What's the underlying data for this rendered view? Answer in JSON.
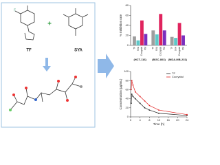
{
  "diagram": {
    "labels": [
      "TF",
      "SYA"
    ]
  },
  "chart_data": [
    {
      "type": "bar",
      "ylabel": "% Inhibition rate",
      "categories": [
        "(HCT-116)",
        "(BGC-803)",
        "(MDA-MB-231)"
      ],
      "series": [
        {
          "name": "TF",
          "color": "#9e9e9e",
          "values": [
            18,
            30,
            17
          ]
        },
        {
          "name": "SYA",
          "color": "#5ec8c8",
          "values": [
            10,
            22,
            15
          ]
        },
        {
          "name": "Cocrystal",
          "color": "#e0245e",
          "values": [
            50,
            63,
            45
          ]
        },
        {
          "name": "PM",
          "color": "#7b2fbe",
          "values": [
            23,
            30,
            20
          ]
        }
      ],
      "ylim": [
        0,
        80
      ],
      "yticks": [
        0,
        20,
        40,
        60,
        80
      ]
    },
    {
      "type": "line",
      "xlabel": "Time (h)",
      "ylabel": "Concentration (μg/mL)",
      "x": [
        0.25,
        0.5,
        1,
        2,
        4,
        6,
        8,
        12,
        24
      ],
      "series": [
        {
          "name": "TF",
          "color": "#222222",
          "values": [
            30,
            50,
            45,
            40,
            30,
            20,
            15,
            8,
            3
          ]
        },
        {
          "name": "Cocrystal",
          "color": "#e02020",
          "values": [
            60,
            80,
            70,
            55,
            45,
            35,
            25,
            15,
            5
          ]
        }
      ],
      "xlim": [
        0,
        24
      ],
      "xticks": [
        0,
        4,
        8,
        12,
        16,
        20,
        24
      ],
      "ylim": [
        0,
        100
      ],
      "yticks": [
        0,
        20,
        40,
        60,
        80,
        100
      ],
      "legend": "upper-right"
    }
  ]
}
